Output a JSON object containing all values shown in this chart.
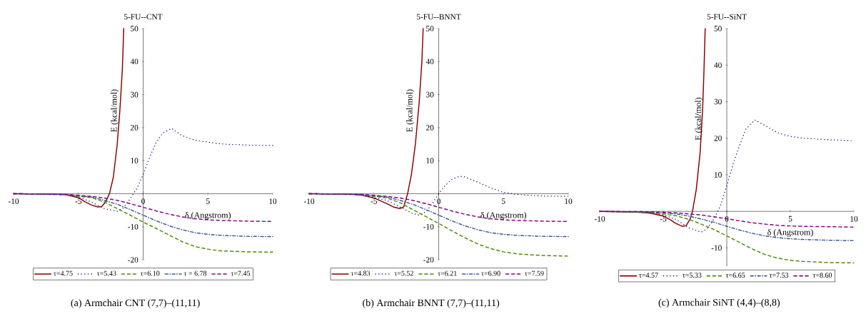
{
  "chart_data": [
    {
      "type": "line",
      "title": "5-FU--CNT",
      "xlabel": "δ (Angstrom)",
      "ylabel": "E (kcal/mol)",
      "annotations": [
        "(a)  Armchair CNT (7,7)–(11,11)"
      ],
      "xlim": [
        -10,
        10
      ],
      "ylim": [
        -20,
        50
      ],
      "xticks": [
        -10,
        -5,
        0,
        5,
        10
      ],
      "yticks": [
        -20,
        -10,
        10,
        20,
        30,
        40,
        50
      ],
      "legend": "bottom",
      "marker": "none",
      "series": [
        {
          "name": "τ=4.75",
          "color": "#8b0000",
          "line_style": "solid",
          "x": [
            -10,
            -7,
            -6,
            -5,
            -4.5,
            -4,
            -3.5,
            -3.2,
            -2.9,
            -2.6,
            -2.3,
            -2.0,
            -1.8,
            -1.6,
            -1.5
          ],
          "values": [
            0,
            -0.1,
            -0.3,
            -1.2,
            -2.4,
            -3.4,
            -4.0,
            -3.9,
            -2.5,
            0,
            5,
            15,
            25,
            38,
            50
          ]
        },
        {
          "name": "τ=5.43",
          "color": "#00008b",
          "line_style": "dotted",
          "x": [
            -10,
            -6,
            -5,
            -4,
            -3,
            -2,
            -1.5,
            -1,
            -0.5,
            0,
            0.5,
            1,
            1.5,
            2,
            2.2,
            3,
            4,
            5,
            6,
            8,
            10
          ],
          "values": [
            0,
            -0.3,
            -1,
            -2.5,
            -4.5,
            -5.3,
            -4.2,
            -1.5,
            1.5,
            5.8,
            11,
            15.5,
            18.3,
            19.4,
            19.8,
            17.6,
            16.2,
            15.6,
            15.1,
            14.7,
            14.6
          ]
        },
        {
          "name": "τ=6.10",
          "color": "#4e8c00",
          "line_style": "dashed",
          "x": [
            -10,
            -6,
            -4,
            -3,
            -2,
            -1,
            0,
            1,
            2,
            3,
            4,
            5,
            6,
            8,
            10
          ],
          "values": [
            0,
            -0.3,
            -1.2,
            -2.5,
            -4.5,
            -6.5,
            -8.6,
            -10.5,
            -12.5,
            -14.5,
            -16,
            -16.8,
            -17.3,
            -17.6,
            -17.7
          ]
        },
        {
          "name": "τ = 6.78",
          "color": "#3c5a96",
          "line_style": "dashdot",
          "x": [
            -10,
            -6,
            -4,
            -3,
            -2,
            -1,
            0,
            1,
            2,
            3,
            4,
            5,
            6,
            8,
            10
          ],
          "values": [
            0,
            -0.2,
            -1,
            -2,
            -3.2,
            -4.8,
            -6.5,
            -8.2,
            -9.7,
            -10.9,
            -11.8,
            -12.3,
            -12.6,
            -12.9,
            -13.0
          ]
        },
        {
          "name": "τ=7.45",
          "color": "#8b008b",
          "line_style": "dashed",
          "x": [
            -10,
            -6,
            -4,
            -3,
            -2,
            -1,
            0,
            1,
            2,
            3,
            4,
            5,
            6,
            8,
            10
          ],
          "values": [
            0,
            -0.2,
            -0.8,
            -1.3,
            -2.0,
            -3.0,
            -4.1,
            -5.2,
            -6.2,
            -7.0,
            -7.6,
            -7.9,
            -8.1,
            -8.3,
            -8.4
          ]
        }
      ]
    },
    {
      "type": "line",
      "title": "5-FU--BNNT",
      "xlabel": "δ (Angstrom)",
      "ylabel": "E (kcal/mol)",
      "annotations": [
        "(b)  Armchair BNNT (7,7)–(11,11)"
      ],
      "xlim": [
        -10,
        10
      ],
      "ylim": [
        -20,
        50
      ],
      "xticks": [
        -10,
        -5,
        0,
        5,
        10
      ],
      "yticks": [
        -20,
        -10,
        10,
        20,
        30,
        40,
        50
      ],
      "legend": "bottom",
      "marker": "none",
      "series": [
        {
          "name": "τ=4.83",
          "color": "#8b0000",
          "line_style": "solid",
          "x": [
            -10,
            -7,
            -6,
            -5,
            -4,
            -3.5,
            -3,
            -2.7,
            -2.4,
            -2.1,
            -1.8,
            -1.5,
            -1.3,
            -1.2
          ],
          "values": [
            0,
            -0.1,
            -0.4,
            -1.3,
            -3.0,
            -4.0,
            -4.5,
            -4.0,
            0,
            6,
            15,
            28,
            40,
            50
          ]
        },
        {
          "name": "τ=5.52",
          "color": "#00008b",
          "line_style": "dotted",
          "x": [
            -10,
            -6,
            -4,
            -3,
            -2,
            -1.5,
            -1,
            -0.5,
            0,
            0.5,
            1,
            1.6,
            2,
            3,
            4,
            5,
            6,
            7,
            8,
            10
          ],
          "values": [
            0,
            -0.3,
            -2,
            -4,
            -6,
            -6.5,
            -5.5,
            -3,
            0,
            2.5,
            4.3,
            5.3,
            5.1,
            3.5,
            1.8,
            0.4,
            -0.2,
            -0.5,
            -0.7,
            -0.8
          ]
        },
        {
          "name": "τ=6.21",
          "color": "#4e8c00",
          "line_style": "dashed",
          "x": [
            -10,
            -6,
            -4,
            -3,
            -2,
            -1,
            0,
            1,
            2,
            3,
            4,
            5,
            6,
            8,
            10
          ],
          "values": [
            0,
            -0.3,
            -1.3,
            -2.7,
            -4.8,
            -6.9,
            -9.0,
            -11.2,
            -13.3,
            -15.2,
            -16.6,
            -17.6,
            -18.2,
            -18.7,
            -18.9
          ]
        },
        {
          "name": "τ=6.90",
          "color": "#3c5a96",
          "line_style": "dashdot",
          "x": [
            -10,
            -6,
            -4,
            -3,
            -2,
            -1,
            0,
            1,
            2,
            3,
            4,
            5,
            6,
            8,
            10
          ],
          "values": [
            0,
            -0.2,
            -1,
            -2,
            -3.2,
            -4.8,
            -6.5,
            -8.2,
            -9.7,
            -10.9,
            -11.8,
            -12.3,
            -12.6,
            -12.9,
            -13.0
          ]
        },
        {
          "name": "τ=7.59",
          "color": "#8b008b",
          "line_style": "dashed",
          "x": [
            -10,
            -6,
            -4,
            -3,
            -2,
            -1,
            0,
            1,
            2,
            3,
            4,
            5,
            6,
            8,
            10
          ],
          "values": [
            0,
            -0.2,
            -0.8,
            -1.3,
            -2.0,
            -3.0,
            -4.1,
            -5.2,
            -6.2,
            -7.0,
            -7.6,
            -7.9,
            -8.1,
            -8.3,
            -8.4
          ]
        }
      ]
    },
    {
      "type": "line",
      "title": "5-FU--SiNT",
      "xlabel": "δ (Angstrom)",
      "ylabel": "E (kcal/mol)",
      "annotations": [
        "(c)  Armchair SiNT (4,4)–(8,8)"
      ],
      "xlim": [
        -10,
        10
      ],
      "ylim": [
        -15,
        50
      ],
      "xticks": [
        -10,
        -5,
        0,
        5,
        10
      ],
      "yticks": [
        -10,
        10,
        20,
        30,
        40,
        50
      ],
      "legend": "bottom",
      "marker": "none",
      "series": [
        {
          "name": "τ=4.57",
          "color": "#8b0000",
          "line_style": "solid",
          "x": [
            -10,
            -7,
            -6,
            -5,
            -4.5,
            -4,
            -3.5,
            -3.2,
            -2.9,
            -2.7,
            -2.4,
            -2.1,
            -1.9,
            -1.8,
            -1.7
          ],
          "values": [
            0,
            -0.2,
            -0.5,
            -1.3,
            -2.2,
            -3.3,
            -4.1,
            -3.9,
            -2.2,
            0,
            6,
            16,
            28,
            38,
            50
          ]
        },
        {
          "name": "τ=5.33",
          "color": "#00008b",
          "line_style": "dotted",
          "x": [
            -10,
            -6,
            -5,
            -4,
            -3,
            -2,
            -1.5,
            -1,
            -0.5,
            0,
            0.5,
            1,
            1.5,
            2.2,
            3,
            4,
            5,
            6,
            8,
            10
          ],
          "values": [
            0,
            -0.3,
            -1,
            -2.2,
            -4.5,
            -5.7,
            -4.5,
            -2,
            1.5,
            7,
            13,
            18,
            22.5,
            25,
            23.5,
            21.5,
            20.5,
            20,
            19.6,
            19.3
          ]
        },
        {
          "name": "τ=6.65",
          "color": "#4e8c00",
          "line_style": "dashed",
          "x": [
            -10,
            -6,
            -4,
            -3,
            -2,
            -1,
            0,
            1,
            2,
            3,
            4,
            5,
            6,
            8,
            10
          ],
          "values": [
            0,
            -0.3,
            -1.2,
            -2.2,
            -3.5,
            -5.0,
            -6.7,
            -8.5,
            -10.3,
            -11.8,
            -12.8,
            -13.4,
            -13.7,
            -14.0,
            -14.1
          ]
        },
        {
          "name": "τ=7.53",
          "color": "#3c5a96",
          "line_style": "dashdot",
          "x": [
            -10,
            -6,
            -4,
            -3,
            -2,
            -1,
            0,
            1,
            2,
            3,
            4,
            5,
            6,
            8,
            10
          ],
          "values": [
            0,
            -0.2,
            -0.7,
            -1.3,
            -2.1,
            -3.0,
            -4.1,
            -5.1,
            -6.0,
            -6.7,
            -7.2,
            -7.5,
            -7.7,
            -7.9,
            -8.0
          ]
        },
        {
          "name": "τ=8.60",
          "color": "#8b008b",
          "line_style": "dashed",
          "x": [
            -10,
            -6,
            -4,
            -2,
            -1,
            0,
            1,
            2,
            3,
            4,
            5,
            6,
            8,
            10
          ],
          "values": [
            0,
            -0.1,
            -0.4,
            -1.0,
            -1.5,
            -2.0,
            -2.6,
            -3.1,
            -3.5,
            -3.8,
            -4.0,
            -4.1,
            -4.2,
            -4.3
          ]
        }
      ]
    }
  ]
}
